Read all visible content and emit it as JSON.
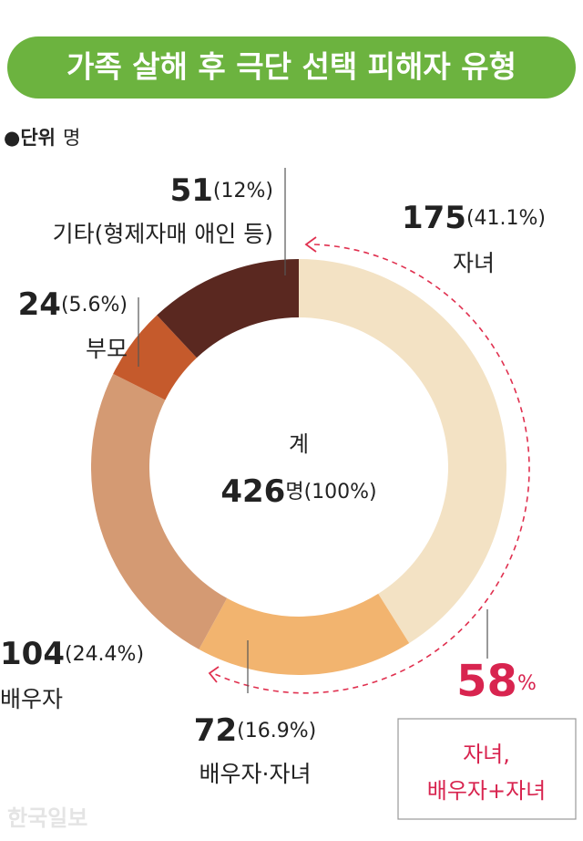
{
  "chart_data": {
    "type": "donut",
    "title": "가족 살해 후 극단 선택 피해자 유형",
    "unit_marker": "●단위",
    "unit": "명",
    "categories": [
      "자녀",
      "배우자·자녀",
      "배우자",
      "부모",
      "기타(형제자매 애인 등)"
    ],
    "values": [
      175,
      72,
      104,
      24,
      51
    ],
    "percent_labels": [
      "(41.1%)",
      "(16.9%)",
      "(24.4%)",
      "(5.6%)",
      "(12%)"
    ],
    "colors": [
      "#f3e2c4",
      "#f2b46f",
      "#d49a73",
      "#c55a2c",
      "#5a2820"
    ],
    "total_label": "계",
    "total": 426,
    "total_suffix": "명(100%)",
    "highlight_value": 58,
    "highlight_unit": "%",
    "highlight_text": [
      "자녀,",
      "배우자+자녀"
    ],
    "source": "한국일보"
  }
}
